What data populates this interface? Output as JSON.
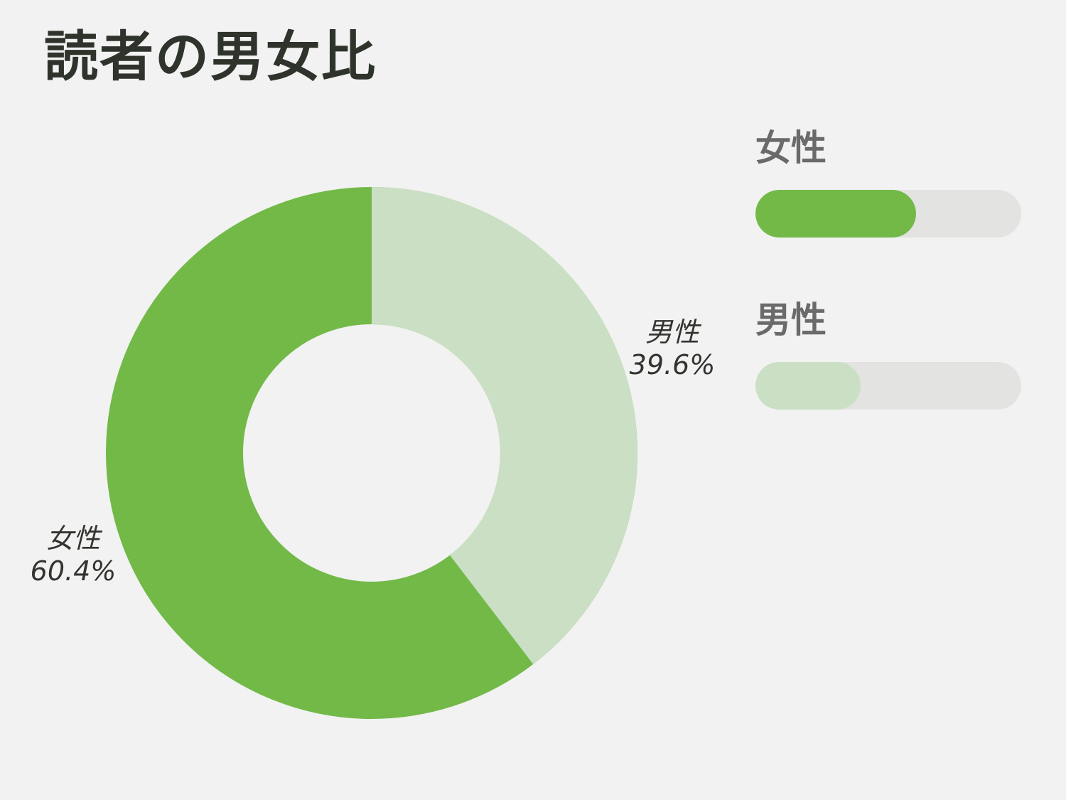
{
  "title": "読者の男女比",
  "colors": {
    "background": "#f1f2f1",
    "title_text": "#2e332b",
    "legend_label_text": "#6a6a6b",
    "slice_label_text": "#33342f",
    "bar_track": "#e3e3e2",
    "female_green": "#72b948",
    "male_light_green": "#cadfc4"
  },
  "chart_data": {
    "type": "pie",
    "variant": "donut",
    "title": "読者の男女比",
    "categories": [
      "女性",
      "男性"
    ],
    "values": [
      60.4,
      39.6
    ],
    "slices": [
      {
        "label": "女性",
        "value": 60.4,
        "pct_label": "60.4%",
        "color": "#72b948"
      },
      {
        "label": "男性",
        "value": 39.6,
        "pct_label": "39.6%",
        "color": "#cadfc4"
      }
    ],
    "start_angle": "top",
    "clockwise_first_slice": "男性",
    "inner_radius_ratio": 0.48,
    "legend_position": "right",
    "data_labels": "outside"
  },
  "legend": {
    "items": [
      {
        "label": "女性",
        "value_pct": 60.4,
        "color": "#72b948"
      },
      {
        "label": "男性",
        "value_pct": 39.6,
        "color": "#cadfc4"
      }
    ]
  }
}
